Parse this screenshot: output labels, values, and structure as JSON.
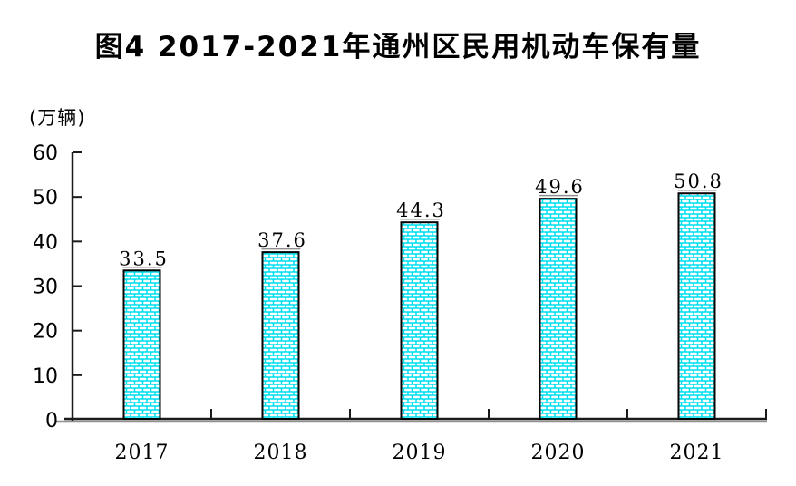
{
  "figure": {
    "title": "图4 2017-2021年通州区民用机动车保有量",
    "unit_label": "(万辆)"
  },
  "chart_data": {
    "type": "bar",
    "title": "图4 2017-2021年通州区民用机动车保有量",
    "xlabel": "",
    "ylabel": "(万辆)",
    "categories": [
      "2017",
      "2018",
      "2019",
      "2020",
      "2021"
    ],
    "values": [
      33.5,
      37.6,
      44.3,
      49.6,
      50.8
    ],
    "value_labels": [
      "33.5",
      "37.6",
      "44.3",
      "49.6",
      "50.8"
    ],
    "ylim": [
      0,
      60
    ],
    "y_ticks": [
      0,
      10,
      20,
      30,
      40,
      50,
      60
    ],
    "grid": false,
    "legend": "none",
    "colors": {
      "bar_fill": "#00dff0",
      "brick": "#ffffff",
      "bar_border": "#000000",
      "axis": "#1a1a1a",
      "shadow": "#8f8f8f",
      "text": "#000000"
    }
  }
}
